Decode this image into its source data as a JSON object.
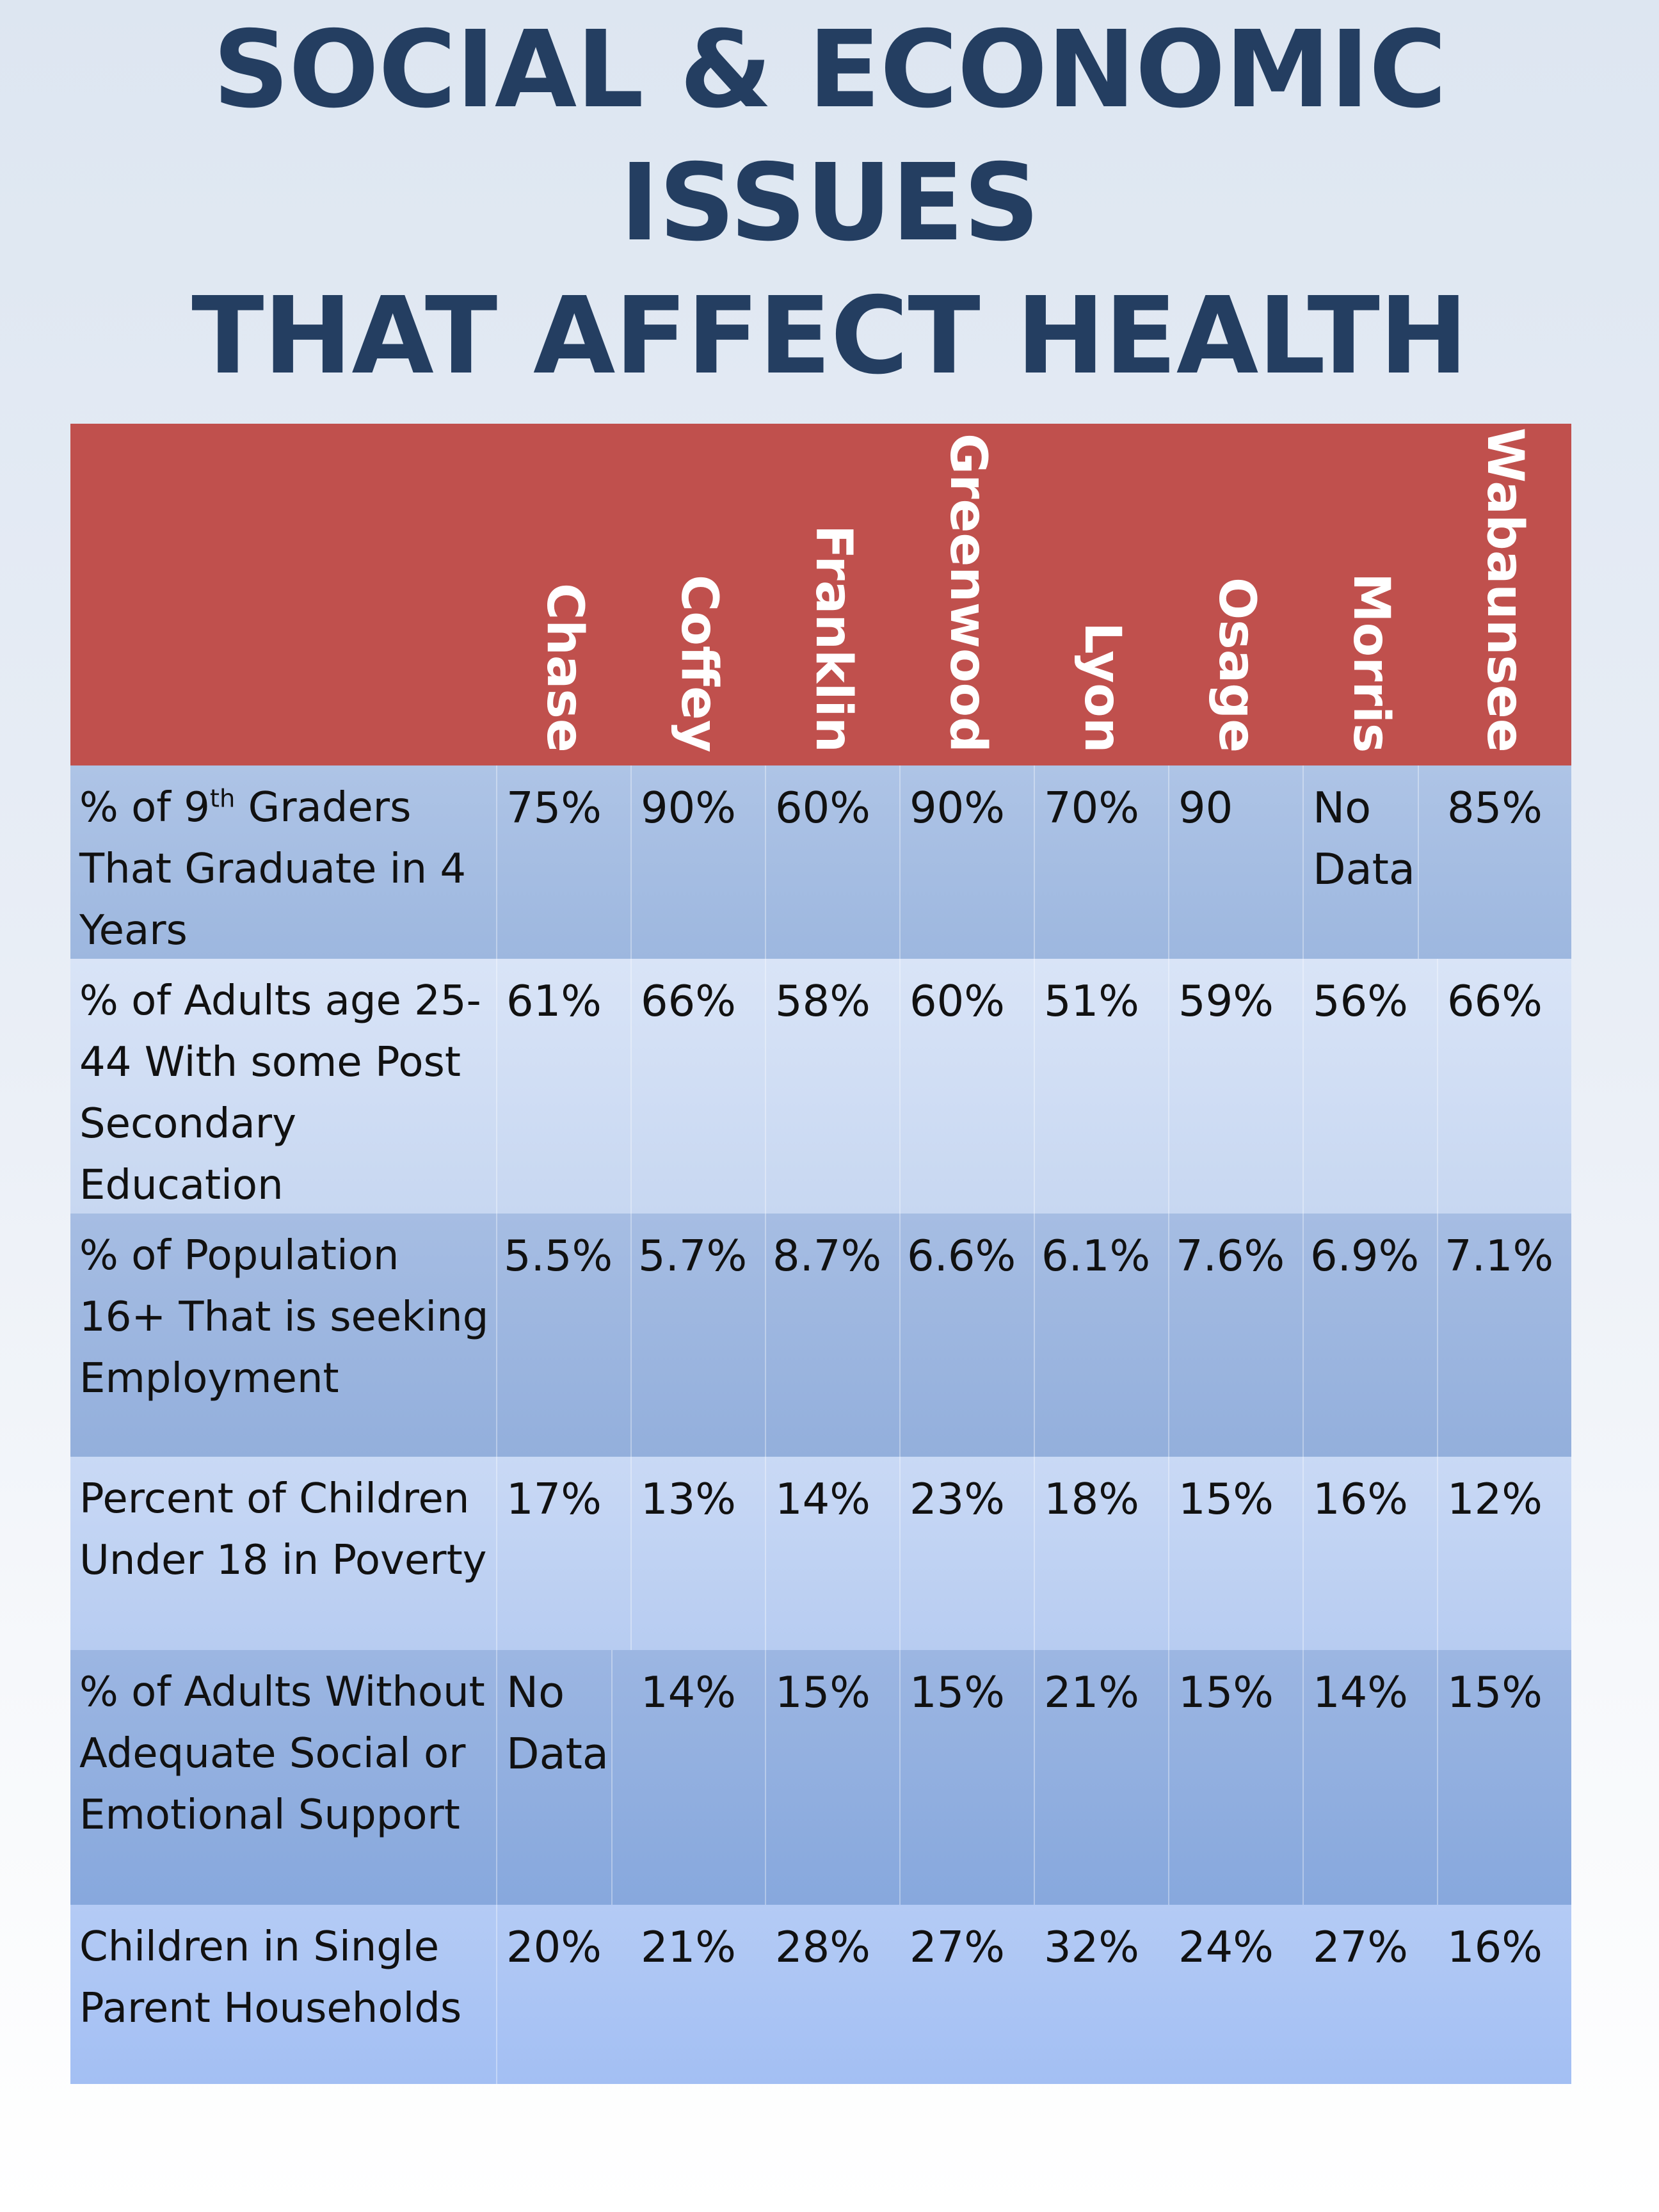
{
  "title": {
    "line1": "SOCIAL & ECONOMIC",
    "line2": "ISSUES",
    "line3": "THAT AFFECT HEALTH"
  },
  "colors": {
    "title": "#243e61",
    "header_bg": "#c0504d",
    "header_text": "#ffffff"
  },
  "columns": [
    "Chase",
    "Coffey",
    "Franklin",
    "Greenwood",
    "Lyon",
    "Osage",
    "Morris",
    "Wabaunsee"
  ],
  "rows": [
    {
      "label_pre": "% of 9",
      "label_sup": "th",
      "label_post": " Graders That Graduate in 4 Years",
      "values": [
        "75%",
        "90%",
        "60%",
        "90%",
        "70%",
        "90",
        "No Data",
        "85%"
      ]
    },
    {
      "label": "% of Adults age 25-44 With some Post Secondary Education",
      "values": [
        "61%",
        "66%",
        "58%",
        "60%",
        "51%",
        "59%",
        "56%",
        "66%"
      ]
    },
    {
      "label": "% of Population 16+ That is seeking Employment",
      "values": [
        "5.5%",
        "5.7%",
        "8.7%",
        "6.6%",
        "6.1%",
        "7.6%",
        "6.9%",
        "7.1%"
      ]
    },
    {
      "label": "Percent of Children Under 18 in Poverty",
      "values": [
        "17%",
        "13%",
        "14%",
        "23%",
        "18%",
        "15%",
        "16%",
        "12%"
      ]
    },
    {
      "label": "% of Adults Without Adequate Social or Emotional Support",
      "values": [
        "No Data",
        "14%",
        "15%",
        "15%",
        "21%",
        "15%",
        "14%",
        "15%"
      ]
    },
    {
      "label": "Children in Single Parent Households",
      "values": [
        "20%",
        "21%",
        "28%",
        "27%",
        "32%",
        "24%",
        "27%",
        "16%"
      ]
    }
  ]
}
